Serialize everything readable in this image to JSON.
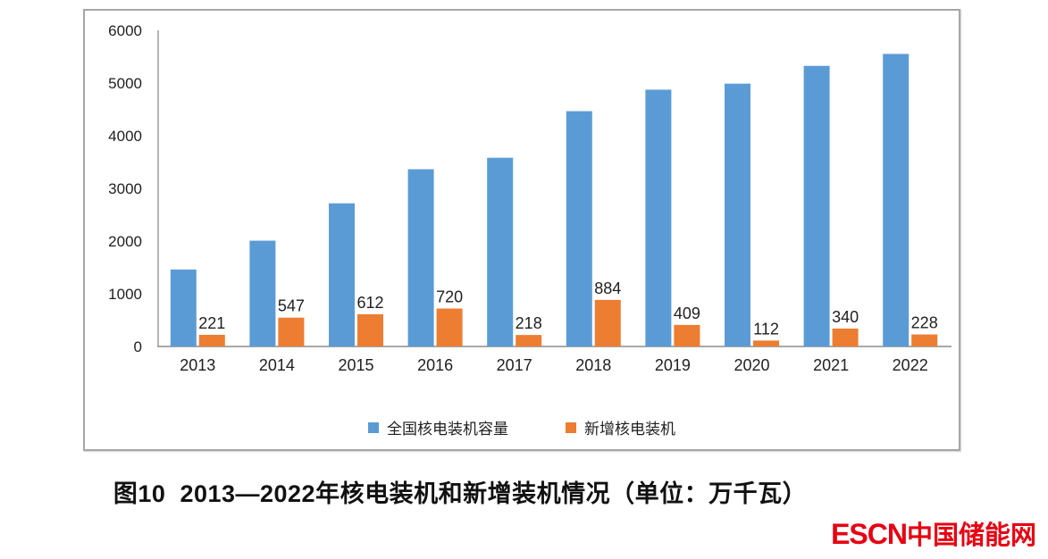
{
  "chart_data": {
    "type": "bar",
    "title": "图10  2013—2022年核电装机和新增装机情况（单位：万千瓦）",
    "unit": "万千瓦",
    "categories": [
      "2013",
      "2014",
      "2015",
      "2016",
      "2017",
      "2018",
      "2019",
      "2020",
      "2021",
      "2022"
    ],
    "series": [
      {
        "name": "全国核电装机容量",
        "color": "#5b9bd5",
        "values": [
          1461,
          2008,
          2717,
          3364,
          3582,
          4466,
          4874,
          4989,
          5326,
          5553
        ],
        "labels_visible": false
      },
      {
        "name": "新增核电装机",
        "color": "#ed7d31",
        "values": [
          221,
          547,
          612,
          720,
          218,
          884,
          409,
          112,
          340,
          228
        ],
        "labels_visible": true
      }
    ],
    "ylim": [
      0,
      6000
    ],
    "yticks": [
      0,
      1000,
      2000,
      3000,
      4000,
      5000,
      6000
    ],
    "grid": false,
    "legend_position": "bottom",
    "axis_color": "#8c8c8c",
    "text_color": "#1f1f1f"
  },
  "caption": "图10  2013—2022年核电装机和新增装机情况（单位：万千瓦）",
  "logo": {
    "latin": "ESCN",
    "cjk": "中国储能网",
    "color": "#e60012"
  }
}
